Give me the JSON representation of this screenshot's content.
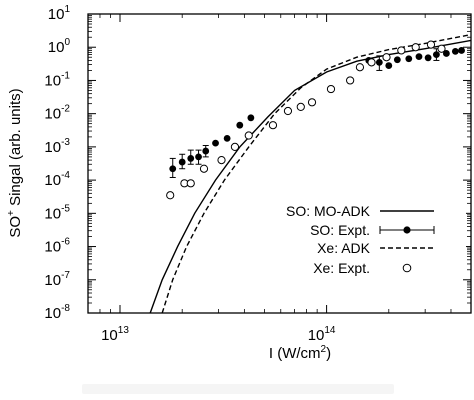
{
  "chart_data": {
    "type": "scatter",
    "xscale": "log",
    "yscale": "log",
    "xlim": [
      7000000000000.0,
      500000000000000.0
    ],
    "ylim": [
      1e-08,
      10
    ],
    "ylabel": {
      "pre": "SO",
      "sup": "+",
      "post": " Singal (arb. units)"
    },
    "xlabel": {
      "pre": "I (W/cm",
      "sup": "2",
      "post": ")"
    },
    "x_ticks": [
      {
        "value": 10000000000000.0,
        "base": "10",
        "exp": "13"
      },
      {
        "value": 100000000000000.0,
        "base": "10",
        "exp": "14"
      }
    ],
    "y_ticks": [
      {
        "value": 1e-08,
        "base": "10",
        "exp": "-8"
      },
      {
        "value": 1e-07,
        "base": "10",
        "exp": "-7"
      },
      {
        "value": 1e-06,
        "base": "10",
        "exp": "-6"
      },
      {
        "value": 1e-05,
        "base": "10",
        "exp": "-5"
      },
      {
        "value": 0.0001,
        "base": "10",
        "exp": "-4"
      },
      {
        "value": 0.001,
        "base": "10",
        "exp": "-3"
      },
      {
        "value": 0.01,
        "base": "10",
        "exp": "-2"
      },
      {
        "value": 0.1,
        "base": "10",
        "exp": "-1"
      },
      {
        "value": 1,
        "base": "10",
        "exp": "0"
      },
      {
        "value": 10,
        "base": "10",
        "exp": "1"
      }
    ],
    "legend_position": "bottom-right",
    "series": [
      {
        "name": "SO: MO-ADK",
        "kind": "line",
        "dash": "solid",
        "points": [
          [
            14000000000000.0,
            1e-08
          ],
          [
            16000000000000.0,
            1e-07
          ],
          [
            19000000000000.0,
            1e-06
          ],
          [
            23000000000000.0,
            1e-05
          ],
          [
            29000000000000.0,
            0.0001
          ],
          [
            38000000000000.0,
            0.001
          ],
          [
            52000000000000.0,
            0.008
          ],
          [
            70000000000000.0,
            0.05
          ],
          [
            100000000000000.0,
            0.18
          ],
          [
            140000000000000.0,
            0.38
          ],
          [
            200000000000000.0,
            0.6
          ],
          [
            300000000000000.0,
            0.9
          ],
          [
            500000000000000.0,
            1.6
          ]
        ]
      },
      {
        "name": "SO: Expt.",
        "kind": "points",
        "marker": "filled-circle",
        "points": [
          {
            "x": 18000000000000.0,
            "y": 0.00022,
            "err": [
              0.00012,
              0.00045
            ]
          },
          {
            "x": 20000000000000.0,
            "y": 0.00035,
            "err": [
              0.00022,
              0.0006
            ]
          },
          {
            "x": 22000000000000.0,
            "y": 0.00045,
            "err": [
              0.0003,
              0.0008
            ]
          },
          {
            "x": 24000000000000.0,
            "y": 0.0005,
            "err": [
              0.0003,
              0.0008
            ]
          },
          {
            "x": 26000000000000.0,
            "y": 0.00075,
            "err": [
              0.0005,
              0.0011
            ]
          },
          {
            "x": 29000000000000.0,
            "y": 0.0013
          },
          {
            "x": 33000000000000.0,
            "y": 0.0018
          },
          {
            "x": 38000000000000.0,
            "y": 0.0045
          },
          {
            "x": 43000000000000.0,
            "y": 0.0075
          },
          {
            "x": 160000000000000.0,
            "y": 0.4
          },
          {
            "x": 180000000000000.0,
            "y": 0.35,
            "err": [
              0.2,
              0.55
            ]
          },
          {
            "x": 200000000000000.0,
            "y": 0.28
          },
          {
            "x": 220000000000000.0,
            "y": 0.42
          },
          {
            "x": 250000000000000.0,
            "y": 0.45
          },
          {
            "x": 280000000000000.0,
            "y": 0.52
          },
          {
            "x": 310000000000000.0,
            "y": 0.48
          },
          {
            "x": 340000000000000.0,
            "y": 0.6,
            "err": [
              0.4,
              0.9
            ]
          },
          {
            "x": 380000000000000.0,
            "y": 0.65
          },
          {
            "x": 420000000000000.0,
            "y": 0.75
          },
          {
            "x": 450000000000000.0,
            "y": 0.8
          }
        ]
      },
      {
        "name": "Xe: ADK",
        "kind": "line",
        "dash": "dashed",
        "points": [
          [
            16000000000000.0,
            1e-08
          ],
          [
            18000000000000.0,
            1e-07
          ],
          [
            21000000000000.0,
            1e-06
          ],
          [
            25500000000000.0,
            1e-05
          ],
          [
            32000000000000.0,
            0.0001
          ],
          [
            42000000000000.0,
            0.001
          ],
          [
            56000000000000.0,
            0.01
          ],
          [
            75000000000000.0,
            0.06
          ],
          [
            100000000000000.0,
            0.22
          ],
          [
            140000000000000.0,
            0.5
          ],
          [
            200000000000000.0,
            0.85
          ],
          [
            300000000000000.0,
            1.3
          ],
          [
            500000000000000.0,
            2.4
          ]
        ]
      },
      {
        "name": "Xe: Expt.",
        "kind": "points",
        "marker": "open-circle",
        "points": [
          [
            17500000000000.0,
            3.5e-05
          ],
          [
            20500000000000.0,
            8e-05
          ],
          [
            22000000000000.0,
            8e-05
          ],
          [
            25500000000000.0,
            0.00022
          ],
          [
            31000000000000.0,
            0.0004
          ],
          [
            36000000000000.0,
            0.001
          ],
          [
            42000000000000.0,
            0.0022
          ],
          [
            55000000000000.0,
            0.0045
          ],
          [
            65000000000000.0,
            0.012
          ],
          [
            75000000000000.0,
            0.016
          ],
          [
            85000000000000.0,
            0.022
          ],
          [
            105000000000000.0,
            0.055
          ],
          [
            130000000000000.0,
            0.1
          ],
          [
            145000000000000.0,
            0.25
          ],
          [
            165000000000000.0,
            0.35
          ],
          [
            195000000000000.0,
            0.5
          ],
          [
            230000000000000.0,
            0.8
          ],
          [
            270000000000000.0,
            1.0
          ],
          [
            320000000000000.0,
            1.2
          ],
          [
            360000000000000.0,
            0.9
          ]
        ]
      }
    ]
  }
}
